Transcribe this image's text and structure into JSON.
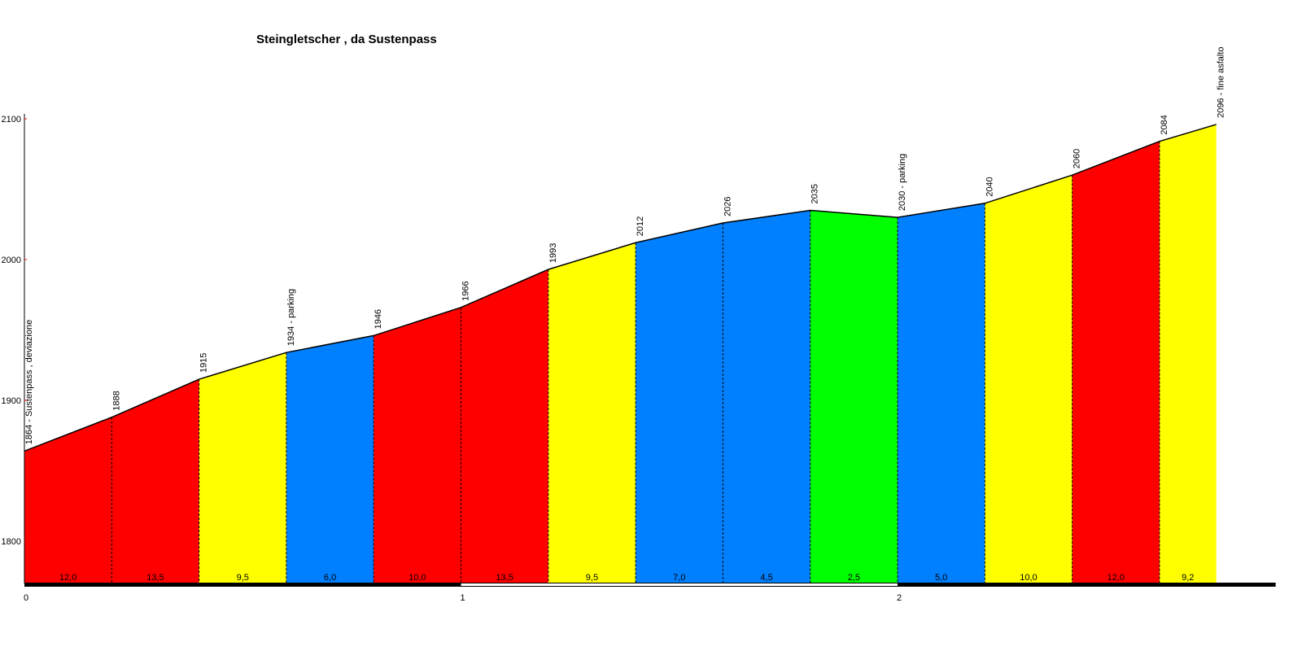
{
  "chart_data": {
    "type": "area",
    "title": "Steingletscher , da Sustenpass",
    "xlabel": "",
    "ylabel": "",
    "xlim": [
      0,
      2.866
    ],
    "ylim": [
      1770,
      2100
    ],
    "yticks": [
      1800,
      1900,
      2000,
      2100
    ],
    "xticks": [
      0,
      1,
      2
    ],
    "grid": false,
    "points": [
      {
        "x": 0.0,
        "y": 1864,
        "label": "1864 - Sustenpass , deviazione"
      },
      {
        "x": 0.2,
        "y": 1888,
        "label": "1888"
      },
      {
        "x": 0.4,
        "y": 1915,
        "label": "1915"
      },
      {
        "x": 0.6,
        "y": 1934,
        "label": "1934 - parking"
      },
      {
        "x": 0.8,
        "y": 1946,
        "label": "1946"
      },
      {
        "x": 1.0,
        "y": 1966,
        "label": "1966"
      },
      {
        "x": 1.2,
        "y": 1993,
        "label": "1993"
      },
      {
        "x": 1.4,
        "y": 2012,
        "label": "2012"
      },
      {
        "x": 1.6,
        "y": 2026,
        "label": "2026"
      },
      {
        "x": 1.8,
        "y": 2035,
        "label": "2035"
      },
      {
        "x": 2.0,
        "y": 2030,
        "label": "2030 - parking"
      },
      {
        "x": 2.2,
        "y": 2040,
        "label": "2040"
      },
      {
        "x": 2.4,
        "y": 2060,
        "label": "2060"
      },
      {
        "x": 2.6,
        "y": 2084,
        "label": "2084"
      },
      {
        "x": 2.73,
        "y": 2096,
        "label": "2096 - fine asfalto"
      }
    ],
    "segments": [
      {
        "gradient": "12,0",
        "color": "#ff0000"
      },
      {
        "gradient": "13,5",
        "color": "#ff0000"
      },
      {
        "gradient": "9,5",
        "color": "#ffff00"
      },
      {
        "gradient": "6,0",
        "color": "#0080ff"
      },
      {
        "gradient": "10,0",
        "color": "#ff0000"
      },
      {
        "gradient": "13,5",
        "color": "#ff0000"
      },
      {
        "gradient": "9,5",
        "color": "#ffff00"
      },
      {
        "gradient": "7,0",
        "color": "#0080ff"
      },
      {
        "gradient": "4,5",
        "color": "#0080ff"
      },
      {
        "gradient": "2,5",
        "color": "#00ff00"
      },
      {
        "gradient": "5,0",
        "color": "#0080ff"
      },
      {
        "gradient": "10,0",
        "color": "#ffff00"
      },
      {
        "gradient": "12,0",
        "color": "#ff0000"
      },
      {
        "gradient": "9,2",
        "color": "#ffff00"
      }
    ]
  }
}
